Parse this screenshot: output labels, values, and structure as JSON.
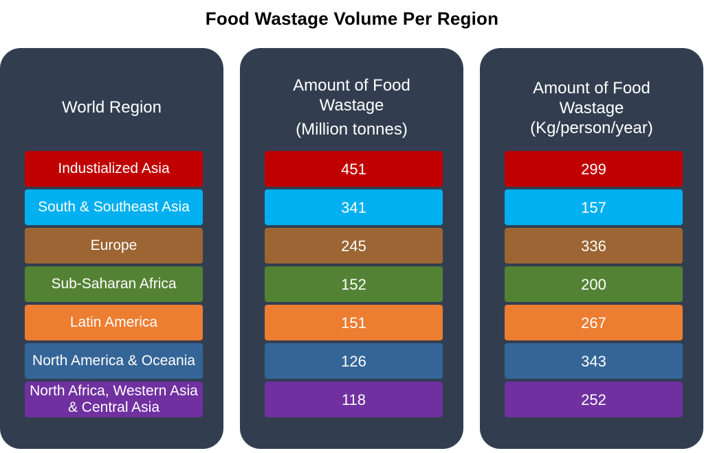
{
  "title": "Food Wastage Volume Per Region",
  "panels": [
    {
      "header_lines": [
        "World Region"
      ]
    },
    {
      "header_lines": [
        "Amount of Food",
        "Wastage",
        "(Million tonnes)"
      ]
    },
    {
      "header_lines": [
        "Amount of Food",
        "Wastage",
        "(Kg/person/year)"
      ]
    }
  ],
  "colors": {
    "panel_bg": "#323e50",
    "rows": [
      "#c00000",
      "#00b0f0",
      "#9c6533",
      "#548235",
      "#ed7d31",
      "#356597",
      "#7030a0"
    ]
  },
  "chart_data": {
    "type": "table",
    "title": "Food Wastage Volume Per Region",
    "columns": [
      "World Region",
      "Amount of Food Wastage (Million tonnes)",
      "Amount of Food Wastage (Kg/person/year)"
    ],
    "rows": [
      {
        "region": "Industialized Asia",
        "million_tonnes": 451,
        "kg_per_person_year": 299
      },
      {
        "region": "South & Southeast Asia",
        "million_tonnes": 341,
        "kg_per_person_year": 157
      },
      {
        "region": "Europe",
        "million_tonnes": 245,
        "kg_per_person_year": 336
      },
      {
        "region": "Sub-Saharan Africa",
        "million_tonnes": 152,
        "kg_per_person_year": 200
      },
      {
        "region": "Latin America",
        "million_tonnes": 151,
        "kg_per_person_year": 267
      },
      {
        "region": "North America & Oceania",
        "million_tonnes": 126,
        "kg_per_person_year": 343
      },
      {
        "region": "North Africa, Western Asia & Central Asia",
        "million_tonnes": 118,
        "kg_per_person_year": 252
      }
    ]
  }
}
